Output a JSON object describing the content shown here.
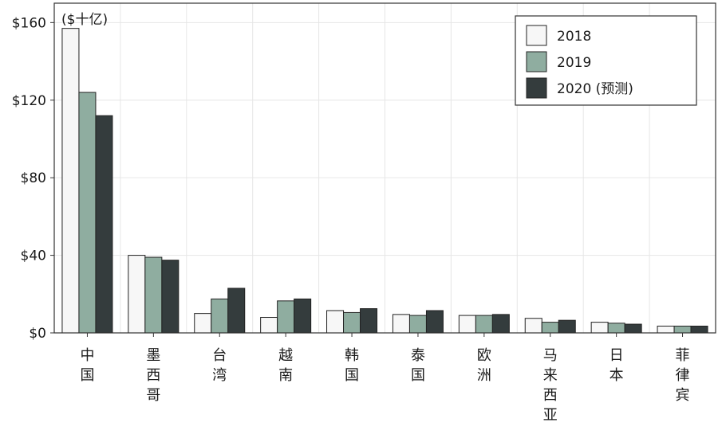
{
  "chart_data": {
    "type": "bar",
    "unit_label": "($十亿)",
    "categories": [
      "中国",
      "墨西哥",
      "台湾",
      "越南",
      "韩国",
      "泰国",
      "欧洲",
      "马来西亚",
      "日本",
      "菲律宾"
    ],
    "series": [
      {
        "name": "2018",
        "values": [
          157,
          40,
          10,
          8,
          11.5,
          9.5,
          9,
          7.5,
          5.5,
          3.5
        ]
      },
      {
        "name": "2019",
        "values": [
          124,
          39,
          17.5,
          16.5,
          10.5,
          9,
          9,
          5.5,
          5,
          3.5
        ]
      },
      {
        "name": "2020 (预测)",
        "values": [
          112,
          37.5,
          23,
          17.5,
          12.5,
          11.5,
          9.5,
          6.5,
          4.5,
          3.5
        ]
      }
    ],
    "colors": [
      "#f7f7f7",
      "#8fada0",
      "#343c3d"
    ],
    "edge_color": "#222222",
    "y_ticks": [
      0,
      40,
      80,
      120,
      160
    ],
    "y_tick_labels": [
      "$0",
      "$40",
      "$80",
      "$120",
      "$160"
    ],
    "ylim": [
      0,
      170
    ],
    "grid": true,
    "legend_position": "top-right"
  }
}
